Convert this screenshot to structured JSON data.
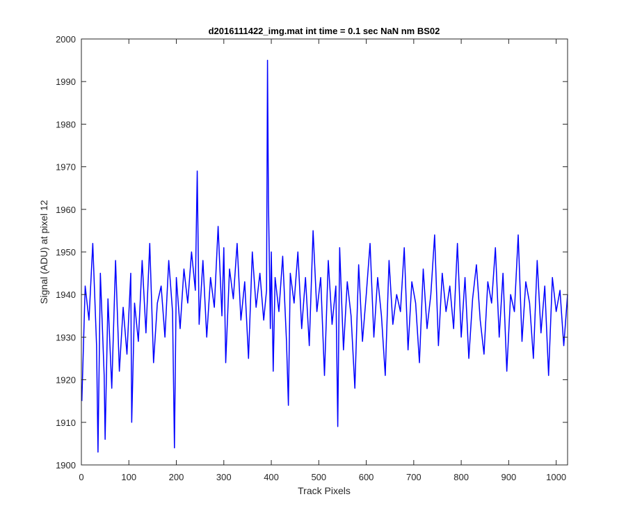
{
  "chart_data": {
    "type": "line",
    "title": "d2016111422_img.mat int time = 0.1 sec  NaN nm BS02",
    "xlabel": "Track Pixels",
    "ylabel": "Signal (ADU) at pixel 12",
    "xlim": [
      0,
      1024
    ],
    "ylim": [
      1900,
      2000
    ],
    "xticks": [
      0,
      100,
      200,
      300,
      400,
      500,
      600,
      700,
      800,
      900,
      1000
    ],
    "yticks": [
      1900,
      1910,
      1920,
      1930,
      1940,
      1950,
      1960,
      1970,
      1980,
      1990,
      2000
    ],
    "grid": false,
    "legend": "none",
    "series": [
      {
        "color": "#0000ff",
        "x": [
          1,
          8,
          16,
          24,
          32,
          35,
          40,
          48,
          50,
          56,
          64,
          72,
          80,
          88,
          96,
          104,
          106,
          112,
          120,
          128,
          136,
          144,
          152,
          160,
          168,
          176,
          184,
          192,
          196,
          200,
          208,
          216,
          224,
          232,
          240,
          244,
          248,
          256,
          264,
          272,
          280,
          288,
          296,
          300,
          304,
          312,
          320,
          328,
          336,
          344,
          352,
          360,
          368,
          376,
          384,
          390,
          392,
          394,
          398,
          400,
          404,
          408,
          416,
          424,
          432,
          436,
          440,
          448,
          456,
          464,
          472,
          480,
          488,
          496,
          504,
          512,
          520,
          528,
          536,
          540,
          544,
          552,
          560,
          568,
          576,
          584,
          592,
          600,
          608,
          616,
          624,
          632,
          640,
          648,
          656,
          664,
          672,
          680,
          688,
          696,
          704,
          712,
          720,
          728,
          736,
          744,
          752,
          760,
          768,
          776,
          784,
          792,
          800,
          808,
          816,
          824,
          832,
          840,
          848,
          856,
          864,
          872,
          880,
          888,
          896,
          904,
          912,
          920,
          928,
          936,
          944,
          952,
          960,
          968,
          976,
          984,
          992,
          1000,
          1008,
          1016,
          1024
        ],
        "y": [
          1915,
          1942,
          1934,
          1952,
          1928,
          1903,
          1945,
          1921,
          1906,
          1939,
          1918,
          1948,
          1922,
          1937,
          1926,
          1945,
          1910,
          1938,
          1929,
          1948,
          1931,
          1952,
          1924,
          1938,
          1942,
          1930,
          1948,
          1936,
          1904,
          1944,
          1932,
          1946,
          1938,
          1950,
          1941,
          1969,
          1933,
          1948,
          1930,
          1944,
          1937,
          1956,
          1935,
          1951,
          1924,
          1946,
          1939,
          1952,
          1934,
          1943,
          1925,
          1950,
          1937,
          1945,
          1934,
          1941,
          1995,
          1962,
          1932,
          1950,
          1922,
          1944,
          1936,
          1949,
          1929,
          1914,
          1945,
          1938,
          1950,
          1932,
          1944,
          1928,
          1955,
          1936,
          1944,
          1921,
          1948,
          1933,
          1942,
          1909,
          1951,
          1927,
          1943,
          1935,
          1918,
          1947,
          1929,
          1940,
          1952,
          1930,
          1944,
          1935,
          1921,
          1948,
          1933,
          1940,
          1936,
          1951,
          1927,
          1943,
          1938,
          1924,
          1946,
          1932,
          1940,
          1954,
          1928,
          1945,
          1936,
          1942,
          1932,
          1952,
          1930,
          1944,
          1925,
          1939,
          1947,
          1934,
          1926,
          1943,
          1938,
          1951,
          1930,
          1945,
          1922,
          1940,
          1936,
          1954,
          1929,
          1943,
          1938,
          1925,
          1948,
          1931,
          1942,
          1921,
          1944,
          1936,
          1941,
          1928,
          1940
        ]
      }
    ]
  }
}
